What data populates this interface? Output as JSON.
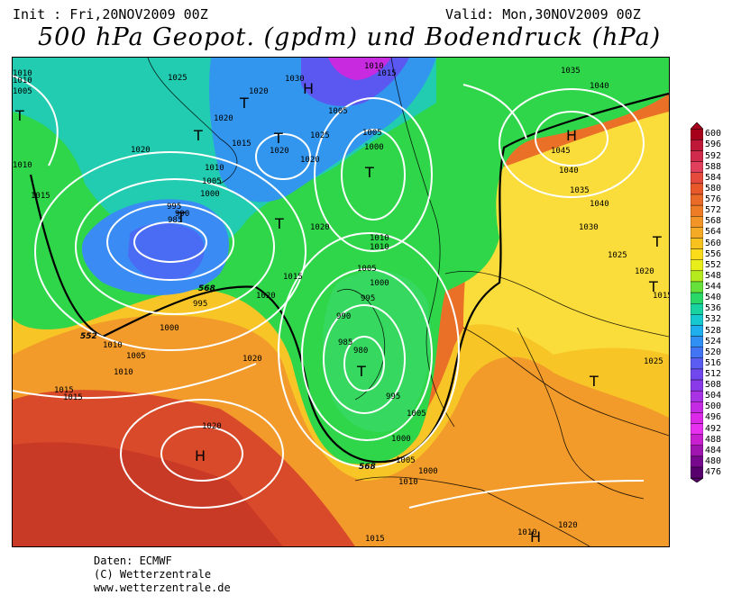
{
  "header": {
    "init": "Init : Fri,20NOV2009 00Z",
    "valid": "Valid: Mon,30NOV2009 00Z",
    "title": "500 hPa Geopot. (gpdm) und Bodendruck (hPa)"
  },
  "legend": {
    "values": [
      "600",
      "596",
      "592",
      "588",
      "584",
      "580",
      "576",
      "572",
      "568",
      "564",
      "560",
      "556",
      "552",
      "548",
      "544",
      "540",
      "536",
      "532",
      "528",
      "524",
      "520",
      "516",
      "512",
      "508",
      "504",
      "500",
      "496",
      "492",
      "488",
      "484",
      "480",
      "476"
    ],
    "colors": [
      "#a6001a",
      "#c01838",
      "#d02a4c",
      "#e0405c",
      "#e64a3c",
      "#e8582a",
      "#ea6a28",
      "#ee7c26",
      "#f29428",
      "#f5aa26",
      "#f8c21e",
      "#fadc1a",
      "#e8ee1a",
      "#b4ea1e",
      "#66e03a",
      "#2ad868",
      "#18d2a0",
      "#16c8d0",
      "#1eb0ee",
      "#3090f4",
      "#4274f6",
      "#5a5cf2",
      "#7048ee",
      "#8a3ae8",
      "#a832e4",
      "#c42ae4",
      "#dc28e8",
      "#e830f0",
      "#c820d0",
      "#a014b0",
      "#78088e",
      "#58006e"
    ]
  },
  "map": {
    "contour_labels": [
      "1010",
      "1005",
      "1025",
      "1030",
      "1010",
      "1015",
      "1035",
      "1040",
      "1020",
      "1020",
      "1015",
      "1020",
      "1025",
      "1005",
      "1000",
      "1045",
      "1020",
      "1010",
      "1010",
      "1040",
      "1005",
      "1020",
      "1000",
      "1035",
      "995",
      "985",
      "990",
      "1015",
      "1020",
      "1030",
      "1010",
      "1010",
      "1025",
      "1005",
      "1000",
      "1015",
      "995",
      "990",
      "985",
      "980",
      "995",
      "1000",
      "995",
      "1020",
      "1005",
      "1010",
      "1005",
      "1000",
      "1010",
      "1015",
      "1020",
      "1025",
      "1020",
      "1015",
      "1020",
      "1000",
      "1005",
      "1010",
      "1020",
      "1015",
      "1010",
      "1040",
      "1010",
      "1005",
      "1015"
    ],
    "geopot_labels": [
      "552",
      "568",
      "568"
    ],
    "high_markers": [
      "H",
      "H",
      "H",
      "H"
    ],
    "low_markers": [
      "T",
      "T",
      "T",
      "T",
      "T",
      "T",
      "T",
      "T",
      "T",
      "T",
      "T"
    ]
  },
  "footer": {
    "source": "Daten: ECMWF",
    "copyright": "(C) Wetterzentrale",
    "url": "www.wetterzentrale.de"
  }
}
